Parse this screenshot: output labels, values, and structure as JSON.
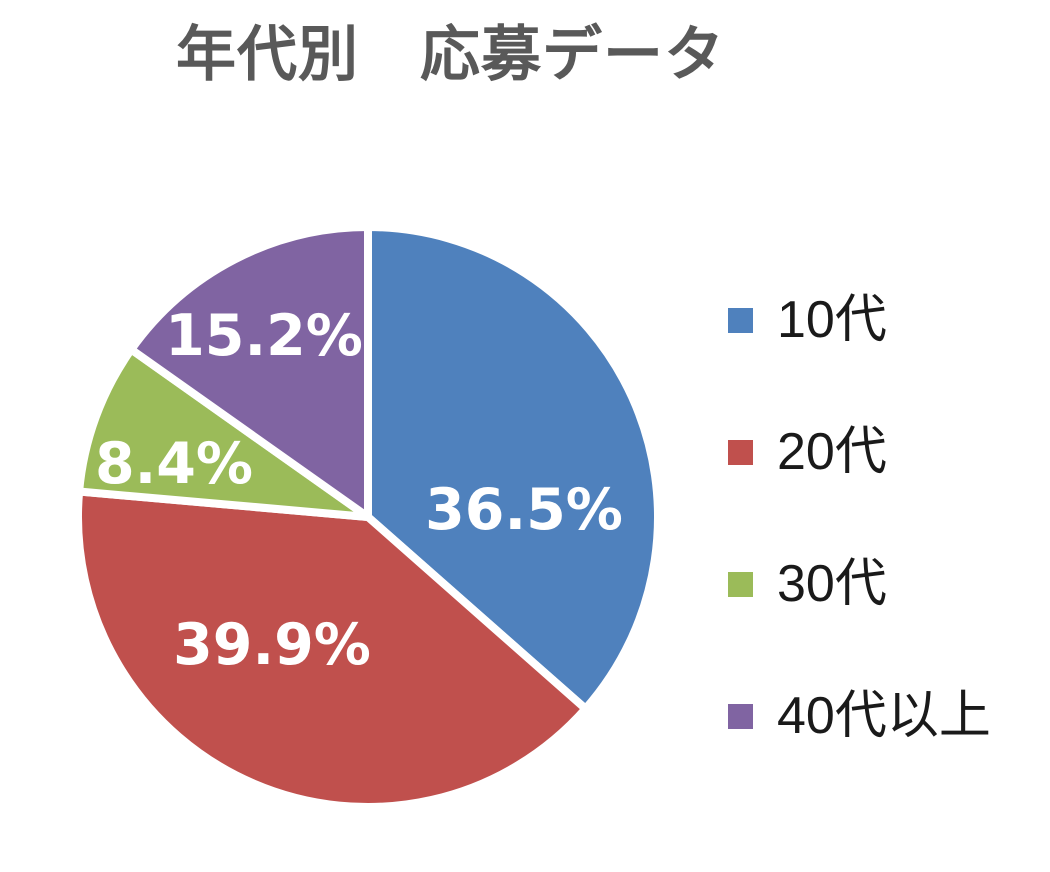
{
  "title": "年代別　応募データ",
  "chart_data": {
    "type": "pie",
    "title": "年代別　応募データ",
    "categories": [
      "10代",
      "20代",
      "30代",
      "40代以上"
    ],
    "values": [
      36.5,
      39.9,
      8.4,
      15.2
    ],
    "data_labels": [
      "36.5%",
      "39.9%",
      "8.4%",
      "15.2%"
    ],
    "colors": [
      "#4F81BD",
      "#C0504D",
      "#9BBB59",
      "#8064A2"
    ],
    "unit": "percent",
    "start_angle_deg": 0,
    "direction": "clockwise",
    "legend_position": "right",
    "slice_border_color": "#FFFFFF",
    "data_label_color": "#FFFFFF",
    "title_color": "#595959",
    "legend_text_color": "#1A1A1A",
    "background_color": "#FFFFFF"
  },
  "legend": {
    "items": [
      {
        "label": "10代",
        "color": "#4F81BD"
      },
      {
        "label": "20代",
        "color": "#C0504D"
      },
      {
        "label": "30代",
        "color": "#9BBB59"
      },
      {
        "label": "40代以上",
        "color": "#8064A2"
      }
    ]
  }
}
